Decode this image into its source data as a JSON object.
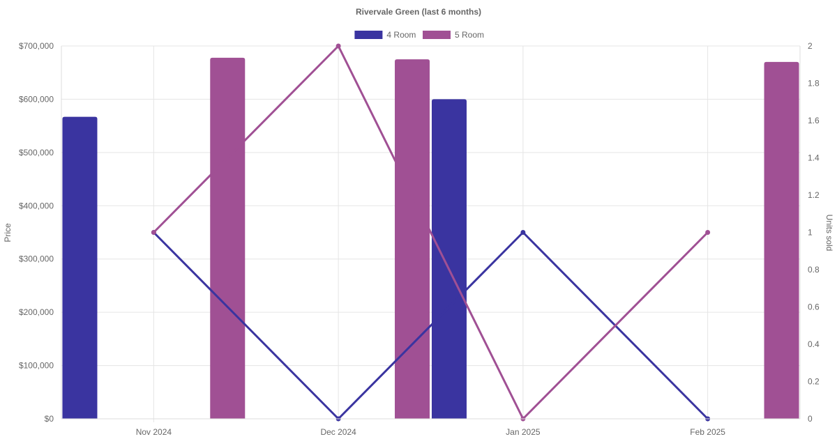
{
  "chart_data": {
    "type": "bar",
    "title": "Rivervale Green (last 6 months)",
    "categories": [
      "Nov 2024",
      "Dec 2024",
      "Jan 2025",
      "Feb 2025"
    ],
    "series": [
      {
        "name": "4 Room",
        "type": "bar",
        "axis": "left",
        "color": "#3a34a0",
        "values": [
          567000,
          null,
          600000,
          null
        ]
      },
      {
        "name": "5 Room",
        "type": "bar",
        "axis": "left",
        "color": "#a05094",
        "values": [
          678000,
          675000,
          null,
          670000
        ]
      },
      {
        "name": "4 Room",
        "type": "line",
        "axis": "right",
        "color": "#3a34a0",
        "values": [
          1,
          0,
          1,
          0
        ],
        "in_legend": false
      },
      {
        "name": "5 Room",
        "type": "line",
        "axis": "right",
        "color": "#a05094",
        "values": [
          1,
          2,
          0,
          1
        ],
        "in_legend": false
      }
    ],
    "ylabel": "Price",
    "y2label": "Units sold",
    "ylim": [
      0,
      700000
    ],
    "y2lim": [
      0,
      2
    ],
    "yticks": [
      "$0",
      "$100,000",
      "$200,000",
      "$300,000",
      "$400,000",
      "$500,000",
      "$600,000",
      "$700,000"
    ],
    "y2ticks": [
      "0",
      "0.2",
      "0.4",
      "0.6",
      "0.8",
      "1",
      "1.2",
      "1.4",
      "1.6",
      "1.8",
      "2"
    ],
    "grid": true,
    "legend_position": "top"
  }
}
